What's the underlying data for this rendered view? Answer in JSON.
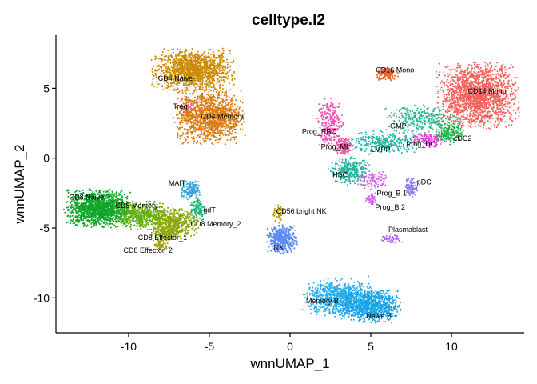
{
  "chart_data": {
    "type": "scatter",
    "title": "celltype.l2",
    "xlabel": "wnnUMAP_1",
    "ylabel": "wnnUMAP_2",
    "xlim": [
      -14.5,
      14.5
    ],
    "ylim": [
      -12.5,
      8.8
    ],
    "xticks": [
      -10,
      -5,
      0,
      5,
      10
    ],
    "xtick_labels": [
      "-10",
      "-5",
      "0",
      "5",
      "10"
    ],
    "yticks": [
      -10,
      -5,
      0,
      5
    ],
    "ytick_labels": [
      "-10",
      "-5",
      "0",
      "5"
    ],
    "grid": false,
    "legend": "none",
    "clusters": [
      {
        "name": "CD4 Naive",
        "color": "#CC8A00",
        "cx": -6.0,
        "cy": 6.3,
        "sx": 1.5,
        "sy": 0.9,
        "n": 1400,
        "label": "CD4 Naive",
        "lx": -7.1,
        "ly": 5.7
      },
      {
        "name": "Treg",
        "color": "#E86A8A",
        "cx": -6.3,
        "cy": 3.6,
        "sx": 0.35,
        "sy": 0.5,
        "n": 90,
        "label": "Treg",
        "lx": -6.8,
        "ly": 3.7
      },
      {
        "name": "CD4 Memory",
        "color": "#DA7A10",
        "cx": -5.0,
        "cy": 3.0,
        "sx": 1.3,
        "sy": 1.2,
        "n": 1300,
        "label": "CD4 Memory",
        "lx": -4.2,
        "ly": 3.0
      },
      {
        "name": "CD16 Mono",
        "color": "#E8662A",
        "cx": 6.0,
        "cy": 6.0,
        "sx": 0.4,
        "sy": 0.3,
        "n": 160,
        "label": "CD16 Mono",
        "lx": 6.5,
        "ly": 6.3
      },
      {
        "name": "CD14 Mono",
        "color": "#F2605A",
        "cx": 11.6,
        "cy": 4.5,
        "sx": 1.5,
        "sy": 1.4,
        "n": 1800,
        "label": "CD14 Mono",
        "lx": 12.2,
        "ly": 4.8
      },
      {
        "name": "GMP",
        "color": "#2BB88E",
        "cx": 8.2,
        "cy": 2.8,
        "sx": 1.4,
        "sy": 0.6,
        "n": 320,
        "label": "GMP",
        "lx": 6.7,
        "ly": 2.3
      },
      {
        "name": "Prog_RBC",
        "color": "#F04CB3",
        "cx": 2.5,
        "cy": 2.5,
        "sx": 0.5,
        "sy": 1.1,
        "n": 250,
        "label": "Prog_RBC",
        "lx": 1.8,
        "ly": 1.9
      },
      {
        "name": "Prog_Mk",
        "color": "#EE56A3",
        "cx": 3.3,
        "cy": 0.9,
        "sx": 0.35,
        "sy": 0.4,
        "n": 140,
        "label": "Prog_Mk",
        "lx": 2.8,
        "ly": 0.8
      },
      {
        "name": "LMPP",
        "color": "#1FB5A6",
        "cx": 5.8,
        "cy": 1.1,
        "sx": 1.3,
        "sy": 0.5,
        "n": 300,
        "label": "LMPP",
        "lx": 5.6,
        "ly": 0.6
      },
      {
        "name": "HSC",
        "color": "#26B4A0",
        "cx": 3.7,
        "cy": -0.9,
        "sx": 0.8,
        "sy": 0.6,
        "n": 320,
        "label": "HSC",
        "lx": 3.1,
        "ly": -1.2
      },
      {
        "name": "Prog_DC",
        "color": "#E03AD8",
        "cx": 8.5,
        "cy": 1.3,
        "sx": 0.6,
        "sy": 0.3,
        "n": 120,
        "label": "Prog_DC",
        "lx": 8.1,
        "ly": 1.0
      },
      {
        "name": "cDC2",
        "color": "#24B24A",
        "cx": 9.9,
        "cy": 1.8,
        "sx": 0.5,
        "sy": 0.5,
        "n": 200,
        "label": "cDC2",
        "lx": 10.7,
        "ly": 1.4
      },
      {
        "name": "pDC",
        "color": "#8E7CF0",
        "cx": 7.5,
        "cy": -2.1,
        "sx": 0.25,
        "sy": 0.4,
        "n": 120,
        "label": "pDC",
        "lx": 8.3,
        "ly": -1.7
      },
      {
        "name": "Prog_B 1",
        "color": "#DC62E8",
        "cx": 5.2,
        "cy": -1.6,
        "sx": 0.6,
        "sy": 0.4,
        "n": 100,
        "label": "Prog_B 1",
        "lx": 6.3,
        "ly": -2.5
      },
      {
        "name": "Prog_B 2",
        "color": "#D05CF0",
        "cx": 5.0,
        "cy": -3.0,
        "sx": 0.25,
        "sy": 0.3,
        "n": 50,
        "label": "Prog_B 2",
        "lx": 6.2,
        "ly": -3.5
      },
      {
        "name": "Plasmablast",
        "color": "#B25CF0",
        "cx": 6.3,
        "cy": -5.8,
        "sx": 0.4,
        "sy": 0.25,
        "n": 50,
        "label": "Plasmablast",
        "lx": 7.3,
        "ly": -5.1
      },
      {
        "name": "MAIT",
        "color": "#34A3D6",
        "cx": -6.2,
        "cy": -2.3,
        "sx": 0.35,
        "sy": 0.4,
        "n": 160,
        "label": "MAIT",
        "lx": -7.0,
        "ly": -1.8
      },
      {
        "name": "gdT",
        "color": "#1EB680",
        "cx": -5.7,
        "cy": -3.6,
        "sx": 0.3,
        "sy": 0.6,
        "n": 120,
        "label": "gdT",
        "lx": -5.0,
        "ly": -3.7
      },
      {
        "name": "CD8 Naive",
        "color": "#11A52A",
        "cx": -11.8,
        "cy": -3.6,
        "sx": 1.3,
        "sy": 0.8,
        "n": 1500,
        "label": "CD8 Naive",
        "lx": -12.6,
        "ly": -2.8
      },
      {
        "name": "CD8 Memory_1",
        "color": "#5FAF10",
        "cx": -9.2,
        "cy": -4.1,
        "sx": 1.0,
        "sy": 0.6,
        "n": 500,
        "label": "CD8 Memory",
        "lx": -9.5,
        "ly": -3.4
      },
      {
        "name": "CD8 Memory_2",
        "color": "#88A800",
        "cx": -7.2,
        "cy": -4.6,
        "sx": 0.9,
        "sy": 0.6,
        "n": 500,
        "label": "CD8 Memory_2",
        "lx": -4.6,
        "ly": -4.7
      },
      {
        "name": "CD8 Effector_1",
        "color": "#8FA80A",
        "cx": -7.6,
        "cy": -5.3,
        "sx": 0.6,
        "sy": 0.35,
        "n": 200,
        "label": "CD8 Effector_1",
        "lx": -7.9,
        "ly": -5.7
      },
      {
        "name": "CD8 Effector_2",
        "color": "#A0A000",
        "cx": -8.0,
        "cy": -6.2,
        "sx": 0.3,
        "sy": 0.25,
        "n": 60,
        "label": "CD8 Effector_2",
        "lx": -8.8,
        "ly": -6.6
      },
      {
        "name": "CD56 bright NK",
        "color": "#C0A000",
        "cx": -0.7,
        "cy": -4.0,
        "sx": 0.25,
        "sy": 0.4,
        "n": 60,
        "label": "CD56 bright NK",
        "lx": 0.7,
        "ly": -3.8
      },
      {
        "name": "NK",
        "color": "#5B8CF5",
        "cx": -0.5,
        "cy": -5.8,
        "sx": 0.55,
        "sy": 0.6,
        "n": 500,
        "label": "NK",
        "lx": -0.7,
        "ly": -6.4
      },
      {
        "name": "Memory B",
        "color": "#26AEEC",
        "cx": 3.0,
        "cy": -10.0,
        "sx": 1.3,
        "sy": 0.8,
        "n": 900,
        "label": "Memory B",
        "lx": 2.0,
        "ly": -10.2
      },
      {
        "name": "Naive B",
        "color": "#18A3E8",
        "cx": 5.0,
        "cy": -10.6,
        "sx": 1.1,
        "sy": 0.7,
        "n": 900,
        "label": "Naive B",
        "lx": 5.5,
        "ly": -11.3
      }
    ]
  }
}
